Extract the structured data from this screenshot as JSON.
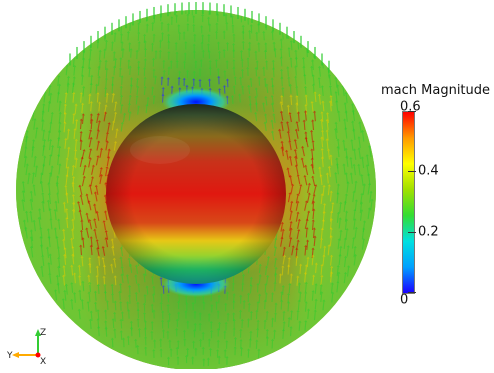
{
  "colorbar": {
    "title": "mach Magnitude",
    "ticks": [
      {
        "value": 0.6,
        "label": "0.6"
      },
      {
        "value": 0.4,
        "label": "0.4"
      },
      {
        "value": 0.2,
        "label": "0.2"
      },
      {
        "value": 0,
        "label": "0"
      }
    ],
    "range": [
      0,
      0.6
    ],
    "colormap": [
      "#1a00ff",
      "#00a0ff",
      "#00e0e0",
      "#33dd33",
      "#a0e000",
      "#ffff00",
      "#ff9900",
      "#ff0000"
    ]
  },
  "axes_triad": {
    "z_label": "Z",
    "y_label": "Y",
    "x_label": "X",
    "z_color": "#33cc33",
    "y_color": "#ffaa00",
    "x_color": "#ff0000"
  },
  "scene": {
    "field_colors": {
      "low": "#2a2aff",
      "mid": "#2ecc2e",
      "high_mid": "#e0cc00",
      "high": "#d10000"
    }
  }
}
